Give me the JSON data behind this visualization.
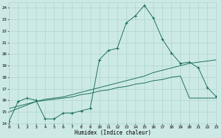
{
  "xlabel": "Humidex (Indice chaleur)",
  "bg_color": "#cce9e5",
  "grid_color": "#aad4ce",
  "line_color": "#1a6b5a",
  "xlim": [
    0,
    23
  ],
  "ylim": [
    14,
    24.5
  ],
  "yticks": [
    14,
    15,
    16,
    17,
    18,
    19,
    20,
    21,
    22,
    23,
    24
  ],
  "xticks": [
    0,
    1,
    2,
    3,
    4,
    5,
    6,
    7,
    8,
    9,
    10,
    11,
    12,
    13,
    14,
    15,
    16,
    17,
    18,
    19,
    20,
    21,
    22,
    23
  ],
  "series1_x": [
    0,
    1,
    2,
    3,
    4,
    5,
    6,
    7,
    8,
    9,
    10,
    11,
    12,
    13,
    14,
    15,
    16,
    17,
    18,
    19,
    20,
    21,
    22,
    23
  ],
  "series1_y": [
    14.2,
    15.9,
    16.2,
    16.0,
    14.4,
    14.4,
    14.9,
    14.9,
    15.1,
    15.3,
    19.5,
    20.3,
    20.5,
    22.7,
    23.3,
    24.2,
    23.1,
    21.3,
    20.1,
    19.2,
    19.3,
    18.8,
    17.1,
    16.3
  ],
  "series2_x": [
    0,
    1,
    2,
    3,
    4,
    5,
    6,
    7,
    8,
    9,
    10,
    11,
    12,
    13,
    14,
    15,
    16,
    17,
    18,
    19,
    20,
    21,
    22,
    23
  ],
  "series2_y": [
    15.3,
    15.5,
    15.7,
    15.9,
    16.0,
    16.1,
    16.2,
    16.3,
    16.5,
    16.6,
    16.8,
    16.9,
    17.1,
    17.2,
    17.4,
    17.5,
    17.7,
    17.8,
    18.0,
    18.1,
    16.2,
    16.2,
    16.2,
    16.2
  ],
  "series3_x": [
    0,
    1,
    2,
    3,
    4,
    5,
    6,
    7,
    8,
    9,
    10,
    11,
    12,
    13,
    14,
    15,
    16,
    17,
    18,
    19,
    20,
    21,
    22,
    23
  ],
  "series3_y": [
    15.0,
    15.3,
    15.6,
    15.9,
    16.1,
    16.2,
    16.3,
    16.5,
    16.7,
    16.9,
    17.1,
    17.3,
    17.5,
    17.7,
    17.9,
    18.1,
    18.4,
    18.6,
    18.8,
    19.0,
    19.2,
    19.3,
    19.4,
    19.5
  ]
}
